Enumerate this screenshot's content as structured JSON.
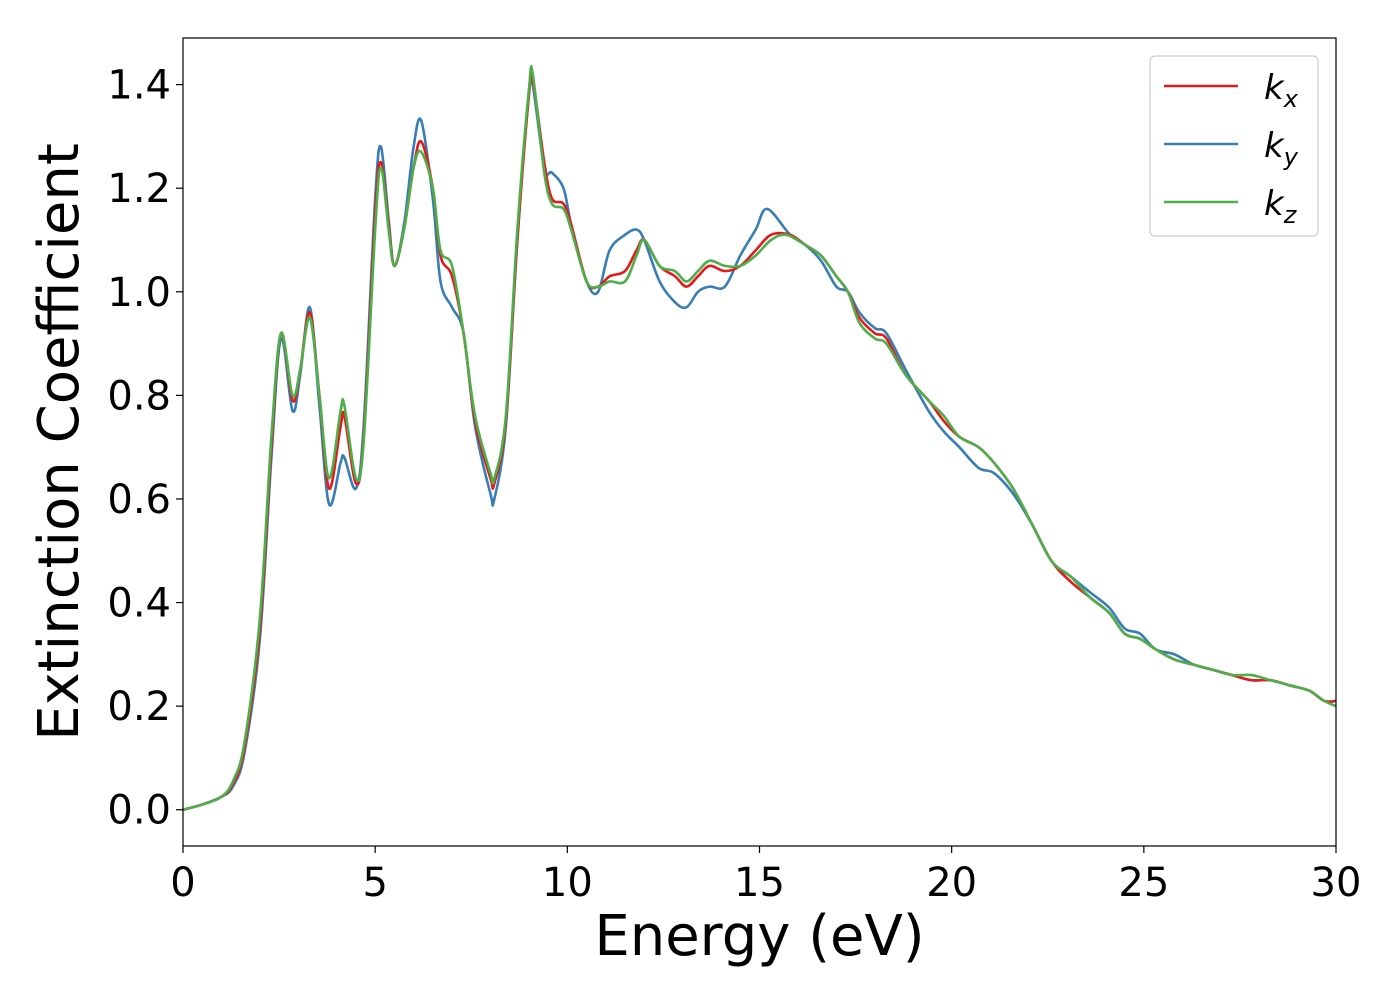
{
  "chart_data": {
    "type": "line",
    "title": "",
    "xlabel": "Energy (eV)",
    "ylabel": "Extinction Coefficient",
    "xlim": [
      0,
      30
    ],
    "ylim": [
      -0.07,
      1.49
    ],
    "xticks": [
      0,
      5,
      10,
      15,
      20,
      25,
      30
    ],
    "xtick_labels": [
      "0",
      "5",
      "10",
      "15",
      "20",
      "25",
      "30"
    ],
    "yticks": [
      0.0,
      0.2,
      0.4,
      0.6,
      0.8,
      1.0,
      1.2,
      1.4
    ],
    "ytick_labels": [
      "0.0",
      "0.2",
      "0.4",
      "0.6",
      "0.8",
      "1.0",
      "1.2",
      "1.4"
    ],
    "grid": false,
    "legend_position": "top-right",
    "series": [
      {
        "name": "k_x",
        "legend_main": "k",
        "legend_sub": "x",
        "color": "#e41a1c",
        "points": [
          [
            0,
            0
          ],
          [
            0.5,
            0.01
          ],
          [
            1,
            0.025
          ],
          [
            1.3,
            0.05
          ],
          [
            1.6,
            0.12
          ],
          [
            2,
            0.35
          ],
          [
            2.3,
            0.7
          ],
          [
            2.55,
            0.92
          ],
          [
            2.85,
            0.79
          ],
          [
            3.05,
            0.85
          ],
          [
            3.3,
            0.96
          ],
          [
            3.55,
            0.8
          ],
          [
            3.8,
            0.62
          ],
          [
            4.1,
            0.74
          ],
          [
            4.2,
            0.76
          ],
          [
            4.5,
            0.63
          ],
          [
            4.7,
            0.72
          ],
          [
            5.0,
            1.15
          ],
          [
            5.15,
            1.25
          ],
          [
            5.35,
            1.13
          ],
          [
            5.5,
            1.05
          ],
          [
            5.75,
            1.12
          ],
          [
            6.0,
            1.24
          ],
          [
            6.2,
            1.29
          ],
          [
            6.5,
            1.2
          ],
          [
            6.7,
            1.07
          ],
          [
            7.0,
            1.03
          ],
          [
            7.3,
            0.92
          ],
          [
            7.6,
            0.75
          ],
          [
            8.0,
            0.64
          ],
          [
            8.1,
            0.63
          ],
          [
            8.4,
            0.75
          ],
          [
            8.7,
            1.1
          ],
          [
            9.0,
            1.38
          ],
          [
            9.1,
            1.41
          ],
          [
            9.4,
            1.25
          ],
          [
            9.6,
            1.18
          ],
          [
            9.9,
            1.17
          ],
          [
            10.1,
            1.13
          ],
          [
            10.5,
            1.02
          ],
          [
            10.8,
            1.01
          ],
          [
            11.1,
            1.03
          ],
          [
            11.5,
            1.04
          ],
          [
            11.8,
            1.08
          ],
          [
            12.0,
            1.1
          ],
          [
            12.4,
            1.05
          ],
          [
            12.8,
            1.03
          ],
          [
            13.1,
            1.01
          ],
          [
            13.4,
            1.03
          ],
          [
            13.7,
            1.05
          ],
          [
            14.1,
            1.04
          ],
          [
            14.5,
            1.05
          ],
          [
            14.9,
            1.08
          ],
          [
            15.3,
            1.11
          ],
          [
            15.8,
            1.11
          ],
          [
            16.2,
            1.09
          ],
          [
            16.6,
            1.07
          ],
          [
            17.0,
            1.03
          ],
          [
            17.3,
            1.0
          ],
          [
            17.6,
            0.95
          ],
          [
            18.0,
            0.92
          ],
          [
            18.3,
            0.91
          ],
          [
            18.8,
            0.84
          ],
          [
            19.4,
            0.79
          ],
          [
            19.8,
            0.75
          ],
          [
            20.2,
            0.72
          ],
          [
            20.7,
            0.7
          ],
          [
            21.1,
            0.67
          ],
          [
            21.6,
            0.62
          ],
          [
            22.1,
            0.55
          ],
          [
            22.6,
            0.48
          ],
          [
            23.1,
            0.44
          ],
          [
            23.6,
            0.41
          ],
          [
            24.1,
            0.38
          ],
          [
            24.5,
            0.34
          ],
          [
            24.9,
            0.33
          ],
          [
            25.3,
            0.31
          ],
          [
            25.8,
            0.29
          ],
          [
            26.3,
            0.28
          ],
          [
            26.8,
            0.27
          ],
          [
            27.3,
            0.26
          ],
          [
            27.8,
            0.25
          ],
          [
            28.3,
            0.25
          ],
          [
            28.8,
            0.24
          ],
          [
            29.3,
            0.23
          ],
          [
            29.7,
            0.21
          ],
          [
            30,
            0.21
          ]
        ]
      },
      {
        "name": "k_y",
        "legend_main": "k",
        "legend_sub": "y",
        "color": "#377eb8",
        "points": [
          [
            0,
            0
          ],
          [
            0.5,
            0.01
          ],
          [
            1,
            0.025
          ],
          [
            1.3,
            0.045
          ],
          [
            1.6,
            0.11
          ],
          [
            2,
            0.33
          ],
          [
            2.3,
            0.68
          ],
          [
            2.55,
            0.91
          ],
          [
            2.85,
            0.77
          ],
          [
            3.05,
            0.84
          ],
          [
            3.3,
            0.97
          ],
          [
            3.55,
            0.78
          ],
          [
            3.8,
            0.59
          ],
          [
            4.1,
            0.67
          ],
          [
            4.2,
            0.68
          ],
          [
            4.5,
            0.62
          ],
          [
            4.7,
            0.74
          ],
          [
            5.0,
            1.18
          ],
          [
            5.15,
            1.28
          ],
          [
            5.35,
            1.14
          ],
          [
            5.5,
            1.05
          ],
          [
            5.75,
            1.13
          ],
          [
            6.0,
            1.28
          ],
          [
            6.2,
            1.33
          ],
          [
            6.5,
            1.18
          ],
          [
            6.7,
            1.02
          ],
          [
            7.0,
            0.97
          ],
          [
            7.3,
            0.92
          ],
          [
            7.6,
            0.74
          ],
          [
            8.0,
            0.61
          ],
          [
            8.1,
            0.6
          ],
          [
            8.4,
            0.74
          ],
          [
            8.7,
            1.1
          ],
          [
            9.0,
            1.38
          ],
          [
            9.1,
            1.4
          ],
          [
            9.4,
            1.24
          ],
          [
            9.6,
            1.23
          ],
          [
            9.9,
            1.2
          ],
          [
            10.1,
            1.13
          ],
          [
            10.5,
            1.02
          ],
          [
            10.8,
            1.0
          ],
          [
            11.1,
            1.08
          ],
          [
            11.5,
            1.11
          ],
          [
            11.8,
            1.12
          ],
          [
            12.0,
            1.1
          ],
          [
            12.4,
            1.02
          ],
          [
            12.8,
            0.98
          ],
          [
            13.1,
            0.97
          ],
          [
            13.4,
            1.0
          ],
          [
            13.7,
            1.01
          ],
          [
            14.1,
            1.01
          ],
          [
            14.5,
            1.07
          ],
          [
            14.9,
            1.12
          ],
          [
            15.2,
            1.16
          ],
          [
            15.8,
            1.11
          ],
          [
            16.2,
            1.09
          ],
          [
            16.6,
            1.06
          ],
          [
            17.0,
            1.01
          ],
          [
            17.3,
            1.0
          ],
          [
            17.6,
            0.96
          ],
          [
            18.0,
            0.93
          ],
          [
            18.3,
            0.92
          ],
          [
            18.8,
            0.85
          ],
          [
            19.4,
            0.77
          ],
          [
            19.8,
            0.73
          ],
          [
            20.2,
            0.7
          ],
          [
            20.7,
            0.66
          ],
          [
            21.1,
            0.65
          ],
          [
            21.6,
            0.61
          ],
          [
            22.1,
            0.55
          ],
          [
            22.6,
            0.48
          ],
          [
            23.1,
            0.45
          ],
          [
            23.6,
            0.42
          ],
          [
            24.1,
            0.39
          ],
          [
            24.5,
            0.35
          ],
          [
            24.9,
            0.34
          ],
          [
            25.3,
            0.31
          ],
          [
            25.8,
            0.3
          ],
          [
            26.3,
            0.28
          ],
          [
            26.8,
            0.27
          ],
          [
            27.3,
            0.26
          ],
          [
            27.8,
            0.25
          ],
          [
            28.3,
            0.25
          ],
          [
            28.8,
            0.24
          ],
          [
            29.3,
            0.23
          ],
          [
            29.7,
            0.21
          ],
          [
            30,
            0.21
          ]
        ]
      },
      {
        "name": "k_z",
        "legend_main": "k",
        "legend_sub": "z",
        "color": "#4daf4a",
        "points": [
          [
            0,
            0
          ],
          [
            0.5,
            0.01
          ],
          [
            1,
            0.025
          ],
          [
            1.3,
            0.055
          ],
          [
            1.6,
            0.13
          ],
          [
            2,
            0.37
          ],
          [
            2.3,
            0.72
          ],
          [
            2.55,
            0.92
          ],
          [
            2.85,
            0.8
          ],
          [
            3.05,
            0.85
          ],
          [
            3.3,
            0.95
          ],
          [
            3.55,
            0.8
          ],
          [
            3.8,
            0.64
          ],
          [
            4.1,
            0.77
          ],
          [
            4.2,
            0.78
          ],
          [
            4.5,
            0.64
          ],
          [
            4.7,
            0.71
          ],
          [
            5.0,
            1.12
          ],
          [
            5.15,
            1.24
          ],
          [
            5.35,
            1.12
          ],
          [
            5.5,
            1.05
          ],
          [
            5.75,
            1.12
          ],
          [
            6.0,
            1.24
          ],
          [
            6.2,
            1.27
          ],
          [
            6.5,
            1.2
          ],
          [
            6.7,
            1.08
          ],
          [
            7.0,
            1.05
          ],
          [
            7.3,
            0.92
          ],
          [
            7.6,
            0.76
          ],
          [
            8.0,
            0.65
          ],
          [
            8.1,
            0.64
          ],
          [
            8.4,
            0.76
          ],
          [
            8.7,
            1.12
          ],
          [
            9.0,
            1.39
          ],
          [
            9.1,
            1.42
          ],
          [
            9.4,
            1.23
          ],
          [
            9.6,
            1.17
          ],
          [
            9.9,
            1.16
          ],
          [
            10.1,
            1.12
          ],
          [
            10.5,
            1.02
          ],
          [
            10.8,
            1.01
          ],
          [
            11.1,
            1.02
          ],
          [
            11.5,
            1.02
          ],
          [
            11.8,
            1.07
          ],
          [
            12.0,
            1.1
          ],
          [
            12.4,
            1.05
          ],
          [
            12.8,
            1.04
          ],
          [
            13.1,
            1.02
          ],
          [
            13.4,
            1.04
          ],
          [
            13.7,
            1.06
          ],
          [
            14.1,
            1.05
          ],
          [
            14.5,
            1.05
          ],
          [
            14.9,
            1.07
          ],
          [
            15.3,
            1.1
          ],
          [
            15.7,
            1.11
          ],
          [
            16.2,
            1.09
          ],
          [
            16.6,
            1.07
          ],
          [
            17.0,
            1.03
          ],
          [
            17.3,
            1.0
          ],
          [
            17.6,
            0.94
          ],
          [
            18.0,
            0.91
          ],
          [
            18.3,
            0.9
          ],
          [
            18.8,
            0.84
          ],
          [
            19.4,
            0.79
          ],
          [
            19.8,
            0.76
          ],
          [
            20.2,
            0.72
          ],
          [
            20.7,
            0.7
          ],
          [
            21.1,
            0.67
          ],
          [
            21.6,
            0.62
          ],
          [
            22.1,
            0.55
          ],
          [
            22.6,
            0.48
          ],
          [
            23.1,
            0.45
          ],
          [
            23.6,
            0.41
          ],
          [
            24.1,
            0.38
          ],
          [
            24.5,
            0.34
          ],
          [
            24.9,
            0.33
          ],
          [
            25.3,
            0.31
          ],
          [
            25.8,
            0.29
          ],
          [
            26.3,
            0.28
          ],
          [
            26.8,
            0.27
          ],
          [
            27.3,
            0.26
          ],
          [
            27.8,
            0.26
          ],
          [
            28.3,
            0.25
          ],
          [
            28.8,
            0.24
          ],
          [
            29.3,
            0.23
          ],
          [
            29.7,
            0.21
          ],
          [
            30,
            0.2
          ]
        ]
      }
    ]
  }
}
